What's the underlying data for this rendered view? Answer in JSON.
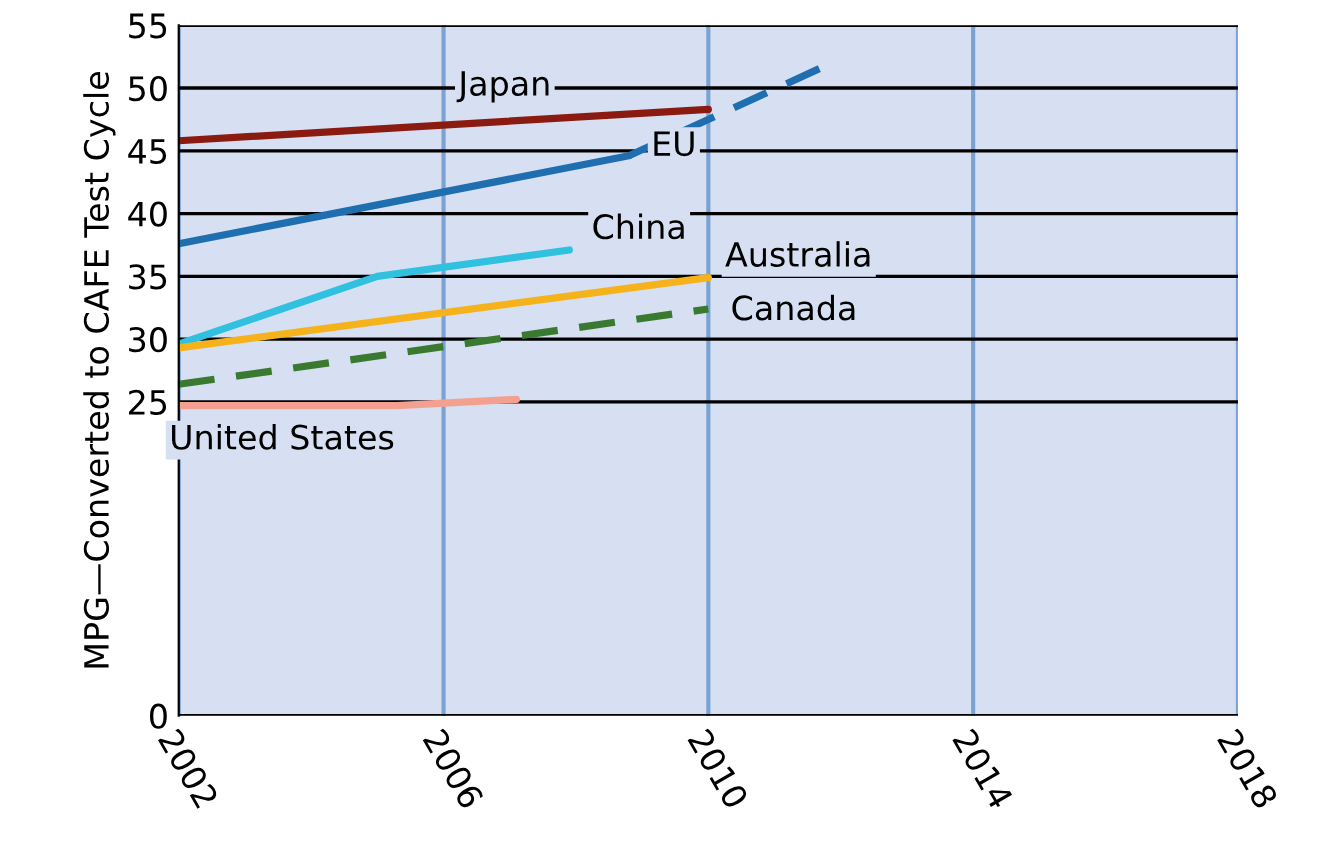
{
  "chart_data": {
    "type": "line",
    "ylabel": "MPG—Converted to CAFE Test Cycle",
    "xlim": [
      2002,
      2018
    ],
    "xticks": [
      2002,
      2006,
      2010,
      2014,
      2018
    ],
    "ylim": [
      0,
      55
    ],
    "yticks": [
      0,
      25,
      30,
      35,
      40,
      45,
      50,
      55
    ],
    "grid": true,
    "legend": false,
    "series": [
      {
        "name": "Japan",
        "color": "#8b1a10",
        "x": [
          2002,
          2010
        ],
        "values": [
          45.8,
          48.3
        ]
      },
      {
        "name": "EU",
        "color": "#1f6fb0",
        "x": [
          2002,
          2008.8
        ],
        "values": [
          37.6,
          44.6
        ]
      },
      {
        "color": "#1f6fb0",
        "line_style": "dashed",
        "x": [
          2008.8,
          2011.7
        ],
        "values": [
          44.6,
          51.6
        ]
      },
      {
        "name": "China",
        "color": "#30c0e0",
        "x": [
          2002,
          2005,
          2007.9
        ],
        "values": [
          29.6,
          35,
          37.1
        ]
      },
      {
        "name": "Australia",
        "color": "#f5b21a",
        "x": [
          2002,
          2010
        ],
        "values": [
          29.3,
          34.9
        ]
      },
      {
        "name": "Canada",
        "color": "#3a7a30",
        "line_style": "dashed",
        "x": [
          2002,
          2010
        ],
        "values": [
          26.4,
          32.4
        ]
      },
      {
        "name": "United States",
        "color": "#f4a090",
        "x": [
          2002,
          2005.3,
          2007.1
        ],
        "values": [
          24.7,
          24.7,
          25.2
        ]
      }
    ]
  }
}
